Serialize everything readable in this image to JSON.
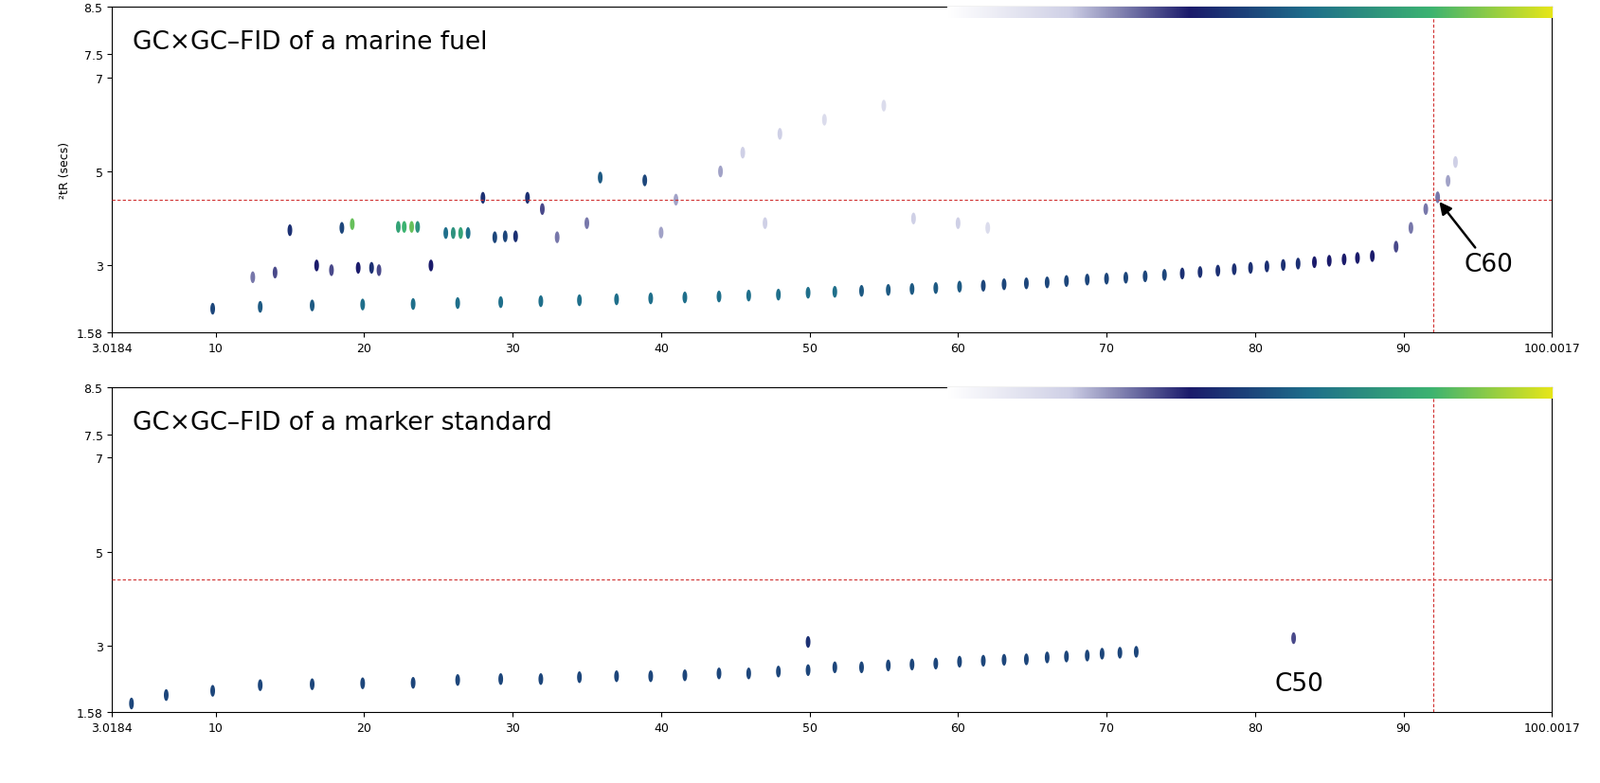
{
  "chart_data": [
    {
      "type": "scatter",
      "title": "GC×GC–FID of a marine fuel",
      "ylabel": "²tR (secs)",
      "xlim": [
        3.0184,
        100.0017
      ],
      "ylim": [
        1.58,
        8.5
      ],
      "xticks": [
        3.0184,
        10,
        20,
        30,
        40,
        50,
        60,
        70,
        80,
        90,
        100.0017
      ],
      "yticks": [
        1.58,
        3,
        5,
        7,
        7.5,
        8.5
      ],
      "marker": "ellipse",
      "color_range": [
        0,
        1
      ],
      "reference_lines": {
        "x": 92.0,
        "y": 4.4
      },
      "annotations": [
        {
          "text": "C60",
          "xy": [
            92.3,
            4.4
          ]
        }
      ],
      "peaks": {
        "x": [
          9.8,
          13.0,
          16.5,
          19.9,
          23.3,
          26.3,
          29.2,
          31.9,
          34.5,
          37.0,
          39.3,
          41.6,
          43.9,
          45.9,
          47.9,
          49.9,
          51.7,
          53.5,
          55.3,
          56.9,
          58.5,
          60.1,
          61.7,
          63.1,
          64.6,
          66.0,
          67.3,
          68.7,
          70.0,
          71.3,
          72.6,
          73.9,
          75.1,
          76.3,
          77.5,
          78.6,
          79.7,
          80.8,
          81.9,
          82.9,
          84.0,
          85.0,
          86.0,
          86.9,
          87.9,
          89.5,
          90.5,
          91.5,
          92.3,
          93.0,
          93.5,
          12.5,
          14.0,
          15.0,
          16.8,
          17.8,
          19.2,
          19.6,
          20.5,
          22.3,
          22.7,
          23.2,
          23.6,
          24.5,
          25.5,
          26.0,
          26.5,
          27.0,
          28.0,
          28.8,
          29.5,
          30.2,
          31.0,
          32.0,
          33.0,
          35.9,
          38.9,
          41.0,
          44.0,
          45.5,
          48.0,
          51.0,
          55.0,
          35.0,
          40.0,
          47.0,
          57.0,
          60.0,
          62.0,
          18.5,
          21.0
        ],
        "y": [
          2.08,
          2.12,
          2.15,
          2.17,
          2.18,
          2.2,
          2.22,
          2.24,
          2.26,
          2.28,
          2.3,
          2.32,
          2.34,
          2.36,
          2.38,
          2.42,
          2.44,
          2.46,
          2.48,
          2.5,
          2.52,
          2.55,
          2.57,
          2.6,
          2.62,
          2.64,
          2.67,
          2.7,
          2.72,
          2.74,
          2.77,
          2.8,
          2.83,
          2.86,
          2.89,
          2.92,
          2.95,
          2.98,
          3.01,
          3.04,
          3.07,
          3.1,
          3.13,
          3.16,
          3.2,
          3.4,
          3.8,
          4.2,
          4.45,
          4.8,
          5.2,
          2.75,
          2.85,
          3.75,
          3.0,
          2.9,
          3.88,
          2.95,
          2.95,
          3.82,
          3.82,
          3.82,
          3.82,
          3.0,
          3.69,
          3.69,
          3.69,
          3.69,
          4.44,
          3.6,
          3.62,
          3.62,
          4.44,
          4.2,
          3.6,
          4.87,
          4.81,
          4.4,
          5.0,
          5.4,
          5.8,
          6.1,
          6.4,
          3.9,
          3.7,
          3.9,
          4.0,
          3.9,
          3.8,
          3.8,
          2.9
        ],
        "intensity": [
          0.5,
          0.55,
          0.55,
          0.6,
          0.6,
          0.6,
          0.6,
          0.6,
          0.6,
          0.6,
          0.6,
          0.6,
          0.6,
          0.6,
          0.6,
          0.6,
          0.6,
          0.55,
          0.55,
          0.55,
          0.55,
          0.55,
          0.5,
          0.5,
          0.5,
          0.5,
          0.5,
          0.5,
          0.5,
          0.5,
          0.5,
          0.5,
          0.45,
          0.45,
          0.45,
          0.45,
          0.45,
          0.45,
          0.45,
          0.45,
          0.4,
          0.4,
          0.4,
          0.4,
          0.4,
          0.35,
          0.3,
          0.3,
          0.3,
          0.25,
          0.2,
          0.3,
          0.35,
          0.45,
          0.4,
          0.35,
          0.85,
          0.4,
          0.45,
          0.75,
          0.8,
          0.85,
          0.7,
          0.4,
          0.6,
          0.7,
          0.75,
          0.6,
          0.45,
          0.5,
          0.5,
          0.45,
          0.45,
          0.35,
          0.3,
          0.55,
          0.5,
          0.25,
          0.25,
          0.2,
          0.2,
          0.15,
          0.15,
          0.3,
          0.25,
          0.2,
          0.2,
          0.2,
          0.15,
          0.5,
          0.35
        ]
      }
    },
    {
      "type": "scatter",
      "title": "GC×GC–FID of a marker standard",
      "xlim": [
        3.0184,
        100.0017
      ],
      "ylim": [
        1.58,
        8.5
      ],
      "xticks": [
        3.0184,
        10,
        20,
        30,
        40,
        50,
        60,
        70,
        80,
        90,
        100.0017
      ],
      "yticks": [
        1.58,
        3,
        5,
        7,
        7.5,
        8.5
      ],
      "marker": "ellipse",
      "color_range": [
        0,
        1
      ],
      "reference_lines": {
        "x": 92.0,
        "y": 4.4
      },
      "annotations": [
        {
          "text": "C50",
          "x": 83.0,
          "y": 2.2
        }
      ],
      "peaks": {
        "x": [
          4.33,
          6.67,
          9.8,
          13.0,
          16.5,
          19.9,
          23.3,
          26.3,
          29.2,
          31.9,
          34.5,
          37.0,
          39.3,
          41.6,
          43.9,
          45.9,
          47.9,
          49.9,
          49.9,
          51.7,
          53.5,
          55.3,
          56.9,
          58.5,
          60.1,
          61.7,
          63.1,
          64.6,
          66.0,
          67.3,
          68.7,
          69.7,
          70.9,
          72.0,
          82.6
        ],
        "y": [
          1.77,
          1.95,
          2.04,
          2.16,
          2.18,
          2.2,
          2.21,
          2.27,
          2.29,
          2.29,
          2.33,
          2.35,
          2.35,
          2.37,
          2.41,
          2.41,
          2.45,
          2.48,
          3.08,
          2.54,
          2.54,
          2.58,
          2.6,
          2.62,
          2.66,
          2.68,
          2.7,
          2.71,
          2.75,
          2.77,
          2.79,
          2.83,
          2.85,
          2.87,
          3.16
        ],
        "intensity": [
          0.5,
          0.5,
          0.5,
          0.5,
          0.5,
          0.5,
          0.5,
          0.5,
          0.5,
          0.5,
          0.5,
          0.5,
          0.5,
          0.5,
          0.5,
          0.5,
          0.5,
          0.5,
          0.45,
          0.5,
          0.5,
          0.5,
          0.5,
          0.5,
          0.5,
          0.5,
          0.5,
          0.5,
          0.5,
          0.5,
          0.5,
          0.5,
          0.5,
          0.5,
          0.35
        ]
      }
    }
  ]
}
